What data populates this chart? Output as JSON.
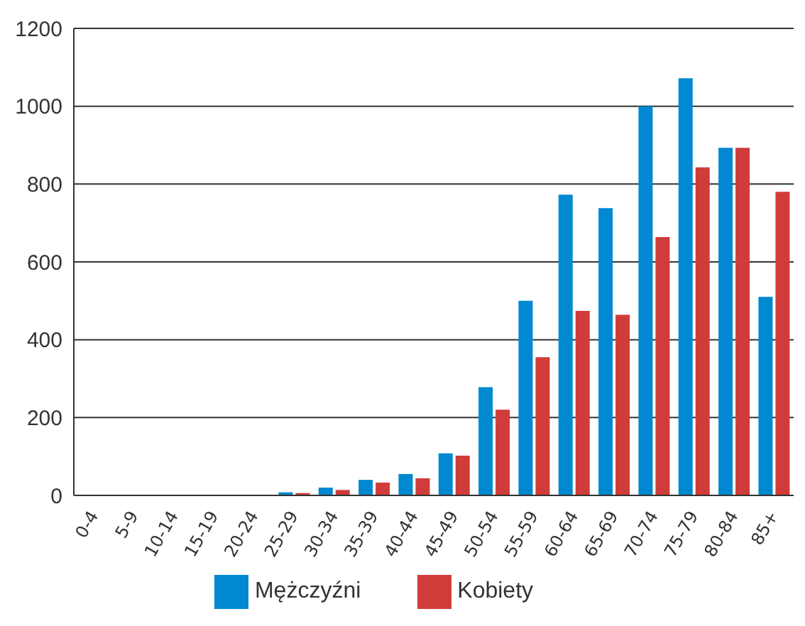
{
  "chart_data": {
    "type": "bar",
    "categories": [
      "0-4",
      "5-9",
      "10-14",
      "15-19",
      "20-24",
      "25-29",
      "30-34",
      "35-39",
      "40-44",
      "45-49",
      "50-54",
      "55-59",
      "60-64",
      "65-69",
      "70-74",
      "75-79",
      "80-84",
      "85+"
    ],
    "series": [
      {
        "name": "Mężczyźni",
        "color": "#0088d0",
        "values": [
          0,
          0,
          0,
          0,
          0,
          8,
          20,
          40,
          55,
          108,
          278,
          500,
          773,
          738,
          1000,
          1072,
          893,
          510
        ]
      },
      {
        "name": "Kobiety",
        "color": "#d03c3a",
        "values": [
          0,
          0,
          0,
          0,
          0,
          6,
          14,
          33,
          44,
          102,
          220,
          355,
          474,
          464,
          664,
          843,
          893,
          780
        ]
      }
    ],
    "ylim": [
      0,
      1200
    ],
    "yticks": [
      0,
      200,
      400,
      600,
      800,
      1000,
      1200
    ],
    "grid": "y",
    "legend": "bottom"
  }
}
